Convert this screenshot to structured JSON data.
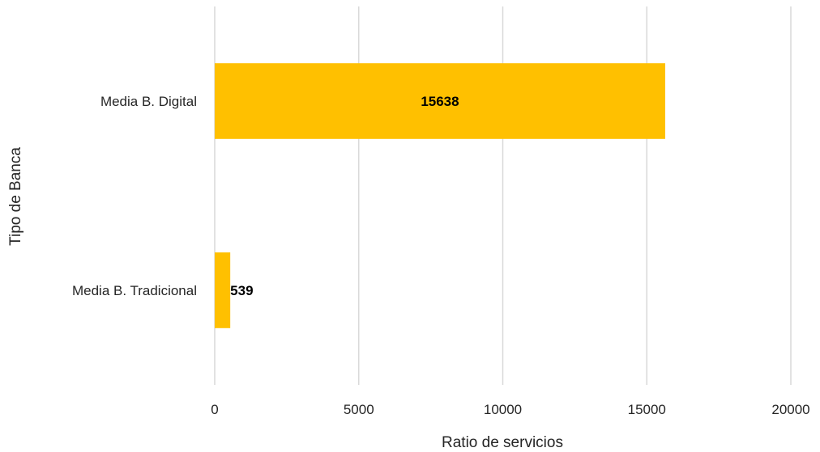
{
  "chart_data": {
    "type": "bar",
    "orientation": "horizontal",
    "categories": [
      "Media B. Digital",
      "Media B. Tradicional"
    ],
    "values": [
      15638,
      539
    ],
    "data_labels": [
      "15638",
      "539"
    ],
    "xlabel": "Ratio de servicios",
    "ylabel": "Tipo de Banca",
    "xlim": [
      0,
      20000
    ],
    "xticks": [
      0,
      5000,
      10000,
      15000,
      20000
    ],
    "grid": "vertical",
    "legend": "none",
    "colors": {
      "bar": "#FFC000",
      "grid": "#D9D9D9"
    }
  }
}
